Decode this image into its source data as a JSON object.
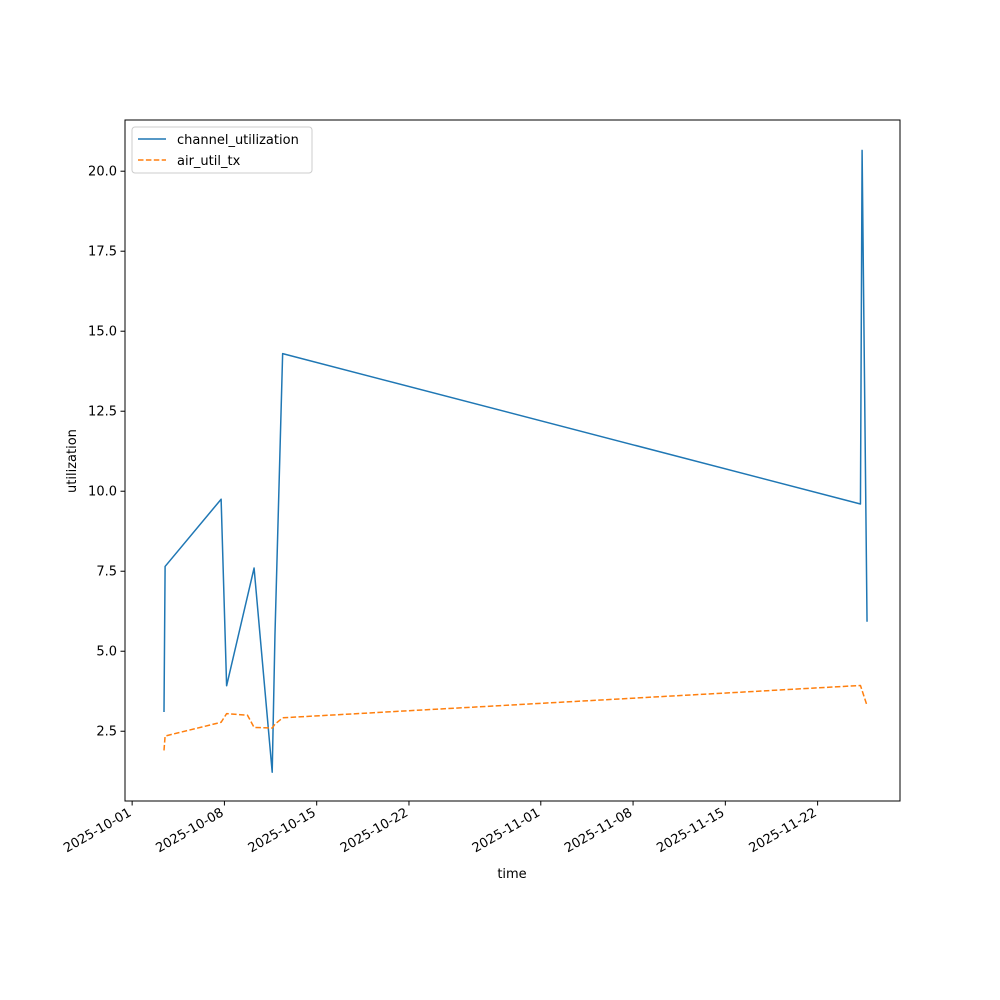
{
  "chart_data": {
    "type": "line",
    "xlabel": "time",
    "ylabel": "utilization",
    "x_axis": "date",
    "x_tick_labels": [
      "2025-10-01",
      "2025-10-08",
      "2025-10-15",
      "2025-10-22",
      "2025-11-01",
      "2025-11-08",
      "2025-11-15",
      "2025-11-22"
    ],
    "y_tick_labels": [
      "2.5",
      "5.0",
      "7.5",
      "10.0",
      "12.5",
      "15.0",
      "17.5",
      "20.0"
    ],
    "xlim": [
      "2025-09-30T11:00",
      "2025-11-28T06:00"
    ],
    "ylim": [
      0.32,
      21.6
    ],
    "grid": false,
    "legend_position": "top-left",
    "series": [
      {
        "name": "channel_utilization",
        "color": "#1f77b4",
        "style": "solid",
        "points": [
          [
            "2025-10-03T10:00",
            3.1
          ],
          [
            "2025-10-03T12:00",
            7.65
          ],
          [
            "2025-10-07T18:00",
            9.75
          ],
          [
            "2025-10-08T04:00",
            3.92
          ],
          [
            "2025-10-10T06:00",
            7.6
          ],
          [
            "2025-10-11T15:00",
            1.22
          ],
          [
            "2025-10-11T20:00",
            5.5
          ],
          [
            "2025-10-12T10:00",
            14.3
          ],
          [
            "2025-11-25T06:00",
            9.6
          ],
          [
            "2025-11-25T09:00",
            20.65
          ],
          [
            "2025-11-25T18:00",
            5.92
          ]
        ]
      },
      {
        "name": "air_util_tx",
        "color": "#ff7f0e",
        "style": "dashed",
        "points": [
          [
            "2025-10-03T10:00",
            1.9
          ],
          [
            "2025-10-03T12:00",
            2.35
          ],
          [
            "2025-10-07T18:00",
            2.78
          ],
          [
            "2025-10-08T04:00",
            3.05
          ],
          [
            "2025-10-09T18:00",
            3.0
          ],
          [
            "2025-10-10T06:00",
            2.62
          ],
          [
            "2025-10-11T15:00",
            2.6
          ],
          [
            "2025-10-11T20:00",
            2.72
          ],
          [
            "2025-10-12T10:00",
            2.92
          ],
          [
            "2025-11-25T06:00",
            3.93
          ],
          [
            "2025-11-25T18:00",
            3.3
          ]
        ]
      }
    ]
  }
}
